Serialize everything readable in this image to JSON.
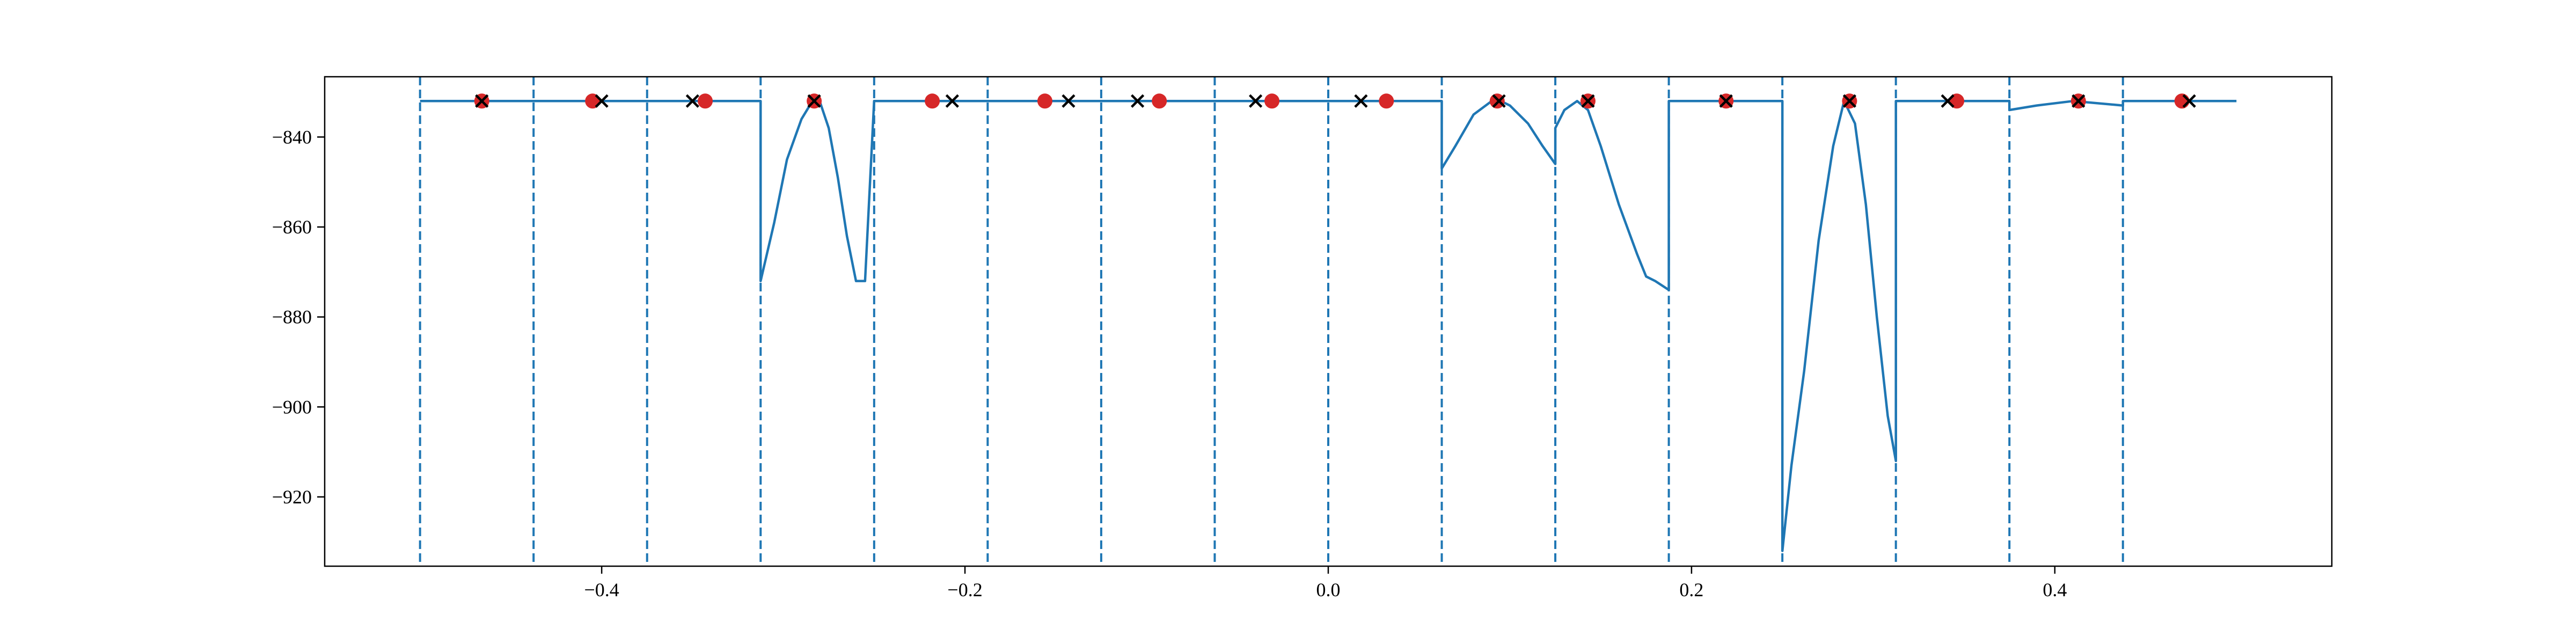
{
  "chart_data": {
    "type": "line",
    "title": "",
    "xlabel": "",
    "ylabel": "",
    "xlim": [
      -0.5525,
      0.5525
    ],
    "ylim": [
      -935.4,
      -826.6
    ],
    "grid": false,
    "xticks": [
      -0.4,
      -0.2,
      0.0,
      0.2,
      0.4
    ],
    "xtick_labels": [
      "−0.4",
      "−0.2",
      "0.0",
      "0.2",
      "0.4"
    ],
    "yticks": [
      -920,
      -900,
      -880,
      -860,
      -840
    ],
    "ytick_labels": [
      "−920",
      "−900",
      "−880",
      "−860",
      "−840"
    ],
    "colors": {
      "line": "#1f77b4",
      "dot": "#d62728",
      "cross": "#000000",
      "axes": "#000000"
    },
    "boundaries": [
      -0.5,
      -0.4375,
      -0.375,
      -0.3125,
      -0.25,
      -0.1875,
      -0.125,
      -0.0625,
      0.0,
      0.0625,
      0.125,
      0.1875,
      0.25,
      0.3125,
      0.375,
      0.4375
    ],
    "series": [
      {
        "style": "solid",
        "x": [
          -0.5,
          -0.4375,
          -0.375,
          -0.3125,
          -0.3125,
          -0.305,
          -0.298,
          -0.29,
          -0.284,
          -0.28,
          -0.275,
          -0.27,
          -0.265,
          -0.26,
          -0.255,
          -0.25,
          -0.25,
          -0.1875,
          -0.125,
          -0.0625,
          0.0,
          0.0625,
          0.0625,
          0.07,
          0.08,
          0.09,
          0.095,
          0.1,
          0.11,
          0.118,
          0.125,
          0.125,
          0.13,
          0.137,
          0.143,
          0.15,
          0.16,
          0.17,
          0.175,
          0.18,
          0.1875,
          0.1875,
          0.25,
          0.25,
          0.255,
          0.262,
          0.27,
          0.278,
          0.284,
          0.29,
          0.296,
          0.302,
          0.308,
          0.3125,
          0.3125,
          0.375,
          0.375,
          0.39,
          0.41,
          0.4375,
          0.4375,
          0.5
        ],
        "y": [
          -832,
          -832,
          -832,
          -832,
          -872,
          -859,
          -845,
          -836,
          -832,
          -832,
          -838,
          -849,
          -862,
          -872,
          -872,
          -832,
          -832,
          -832,
          -832,
          -832,
          -832,
          -832,
          -847,
          -842,
          -835,
          -832,
          -832,
          -833,
          -837,
          -842,
          -846,
          -838,
          -834,
          -832,
          -834,
          -842,
          -855,
          -866,
          -871,
          -872,
          -874,
          -832,
          -832,
          -932,
          -913,
          -892,
          -863,
          -842,
          -832,
          -837,
          -855,
          -880,
          -902,
          -912,
          -832,
          -832,
          -834,
          -833,
          -832,
          -833,
          -832,
          -832
        ]
      }
    ],
    "dots_x": [
      -0.466,
      -0.405,
      -0.343,
      -0.283,
      -0.218,
      -0.156,
      -0.093,
      -0.031,
      0.032,
      0.093,
      0.143,
      0.219,
      0.287,
      0.346,
      0.413,
      0.47
    ],
    "dots_y": [
      -832,
      -832,
      -832,
      -832,
      -832,
      -832,
      -832,
      -832,
      -832,
      -832,
      -832,
      -832,
      -832,
      -832,
      -832,
      -832
    ],
    "crosses_x": [
      -0.466,
      -0.4,
      -0.35,
      -0.283,
      -0.207,
      -0.143,
      -0.105,
      -0.04,
      0.018,
      0.094,
      0.143,
      0.219,
      0.287,
      0.341,
      0.413,
      0.474
    ],
    "crosses_y": [
      -832,
      -832,
      -832,
      -832,
      -832,
      -832,
      -832,
      -832,
      -832,
      -832,
      -832,
      -832,
      -832,
      -832,
      -832,
      -832
    ]
  }
}
